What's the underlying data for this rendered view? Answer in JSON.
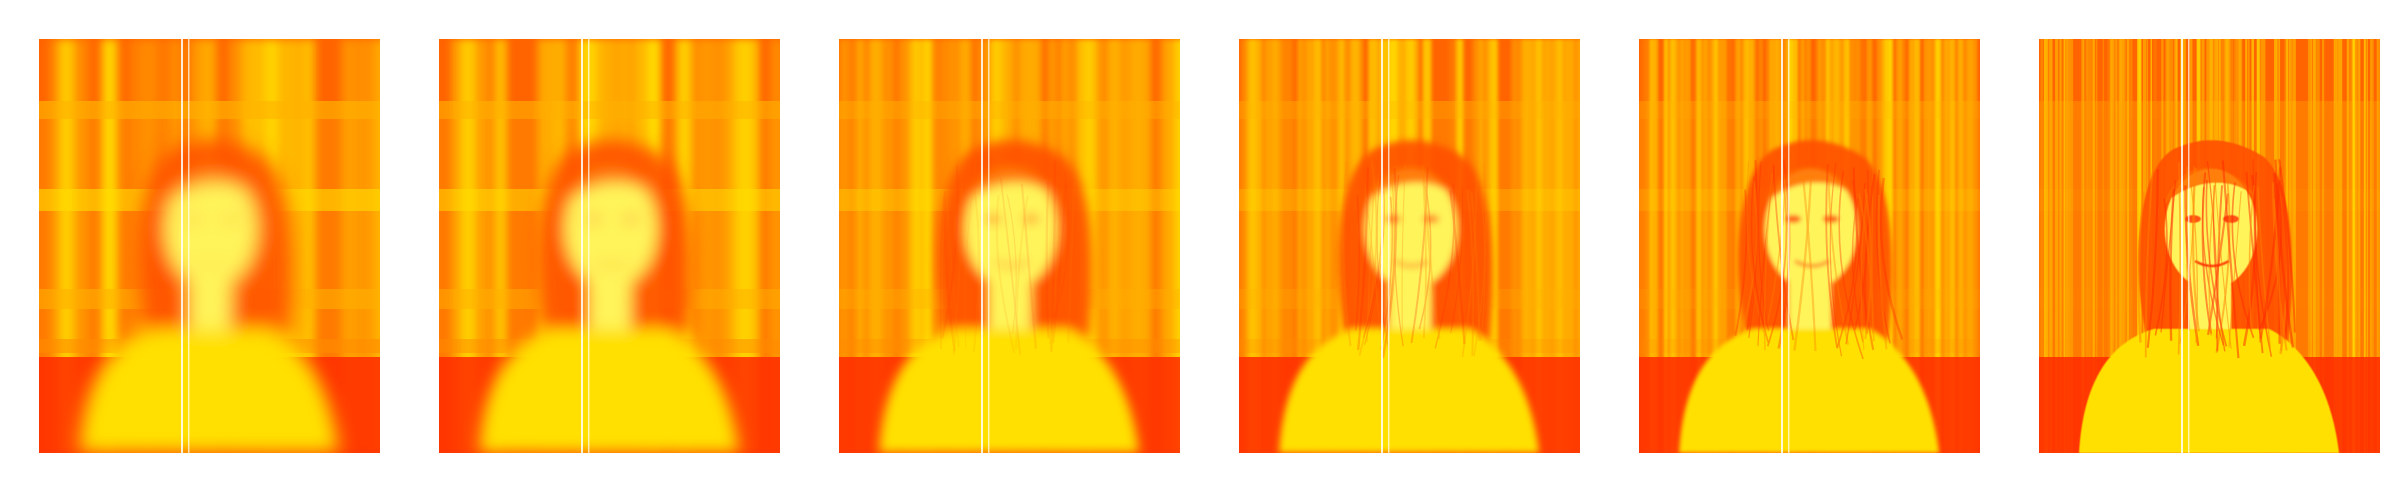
{
  "figure": {
    "colormap": "hot",
    "colors": {
      "background": "#ffffff",
      "red": "#ff2a00",
      "orange": "#ff7a00",
      "amber": "#ffb000",
      "yellow": "#ffe000",
      "pale_yellow": "#fff45a"
    },
    "panels": [
      {
        "step": 1,
        "detail": 0.05
      },
      {
        "step": 2,
        "detail": 0.2
      },
      {
        "step": 3,
        "detail": 0.45
      },
      {
        "step": 4,
        "detail": 0.65
      },
      {
        "step": 5,
        "detail": 0.8
      },
      {
        "step": 6,
        "detail": 1.0
      }
    ]
  }
}
